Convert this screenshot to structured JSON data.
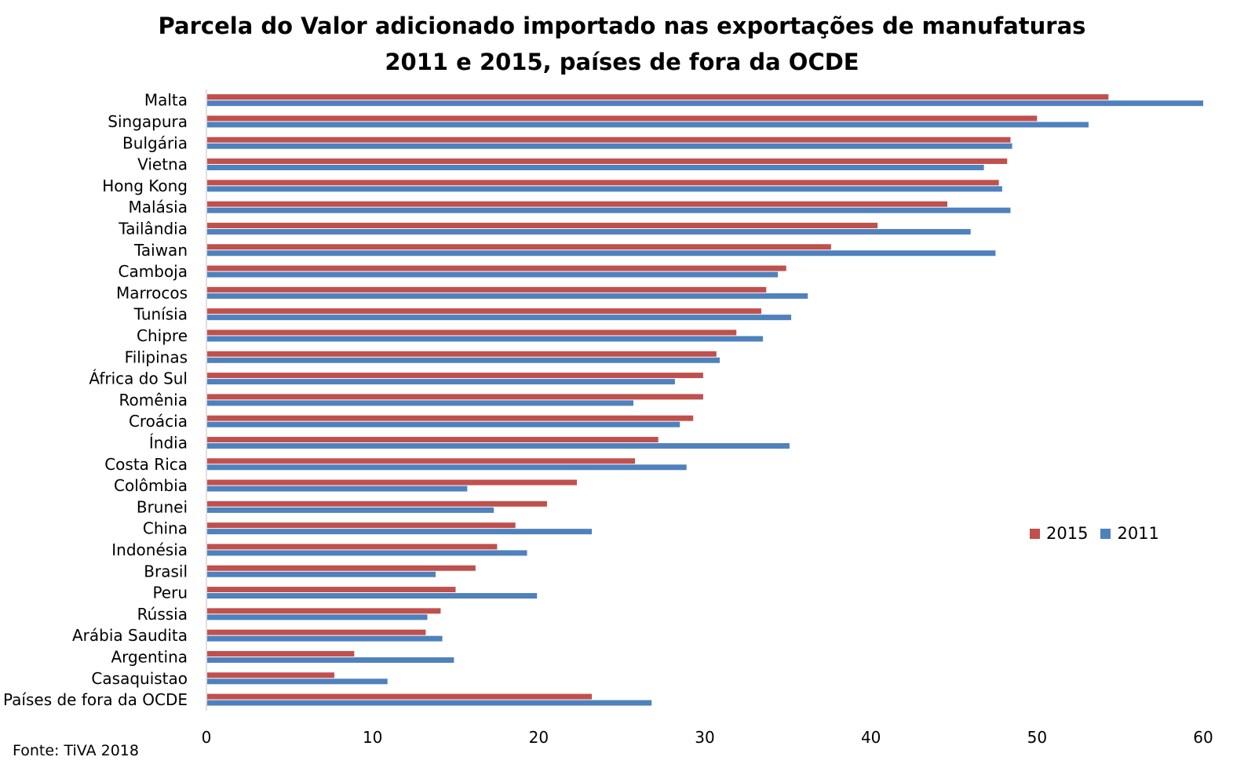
{
  "chart_data": {
    "type": "bar",
    "orientation": "horizontal",
    "title": "Parcela do Valor adicionado importado nas exportações de manufaturas",
    "subtitle": "2011 e 2015, países de fora da OCDE",
    "categories": [
      "Malta",
      "Singapura",
      "Bulgária",
      "Vietna",
      "Hong Kong",
      "Malásia",
      "Tailândia",
      "Taiwan",
      "Camboja",
      "Marrocos",
      "Tunísia",
      "Chipre",
      "Filipinas",
      "África do Sul",
      "Romênia",
      "Croácia",
      "Índia",
      "Costa Rica",
      "Colômbia",
      "Brunei",
      "China",
      "Indonésia",
      "Brasil",
      "Peru",
      "Rússia",
      "Arábia Saudita",
      "Argentina",
      "Casaquistao",
      "Países de fora da OCDE"
    ],
    "series": [
      {
        "name": "2015",
        "color": "#c0504d",
        "values": [
          54.3,
          50.0,
          48.4,
          48.2,
          47.7,
          44.6,
          40.4,
          37.6,
          34.9,
          33.7,
          33.4,
          31.9,
          30.7,
          29.9,
          29.9,
          29.3,
          27.2,
          25.8,
          22.3,
          20.5,
          18.6,
          17.5,
          16.2,
          15.0,
          14.1,
          13.2,
          8.9,
          7.7,
          23.2
        ]
      },
      {
        "name": "2011",
        "color": "#4f81bd",
        "values": [
          60.0,
          53.1,
          48.5,
          46.8,
          47.9,
          48.4,
          46.0,
          47.5,
          34.4,
          36.2,
          35.2,
          33.5,
          30.9,
          28.2,
          25.7,
          28.5,
          35.1,
          28.9,
          15.7,
          17.3,
          23.2,
          19.3,
          13.8,
          19.9,
          13.3,
          14.2,
          14.9,
          10.9,
          26.8
        ]
      }
    ],
    "xlim": [
      0,
      60
    ],
    "xticks": [
      0,
      10,
      20,
      30,
      40,
      50,
      60
    ],
    "grid": false,
    "legend": "right"
  },
  "source": "Fonte: TiVA 2018"
}
